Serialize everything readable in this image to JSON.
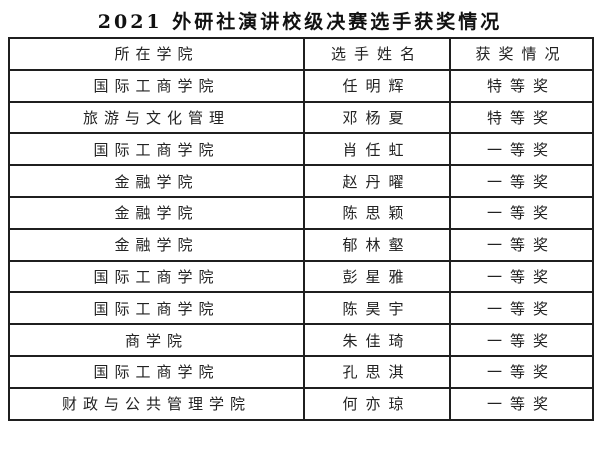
{
  "title": "2021 外研社演讲校级决赛选手获奖情况",
  "table": {
    "headers": {
      "college": "所在学院",
      "name": "选手姓名",
      "award": "获奖情况"
    },
    "rows": [
      {
        "college": "国际工商学院",
        "name": "任明辉",
        "award": "特等奖"
      },
      {
        "college": "旅游与文化管理",
        "name": "邓杨夏",
        "award": "特等奖"
      },
      {
        "college": "国际工商学院",
        "name": "肖任虹",
        "award": "一等奖"
      },
      {
        "college": "金融学院",
        "name": "赵丹曜",
        "award": "一等奖"
      },
      {
        "college": "金融学院",
        "name": "陈思颖",
        "award": "一等奖"
      },
      {
        "college": "金融学院",
        "name": "郁林壑",
        "award": "一等奖"
      },
      {
        "college": "国际工商学院",
        "name": "彭星雅",
        "award": "一等奖"
      },
      {
        "college": "国际工商学院",
        "name": "陈昊宇",
        "award": "一等奖"
      },
      {
        "college": "商学院",
        "name": "朱佳琦",
        "award": "一等奖"
      },
      {
        "college": "国际工商学院",
        "name": "孔思淇",
        "award": "一等奖"
      },
      {
        "college": "财政与公共管理学院",
        "name": "何亦琼",
        "award": "一等奖"
      }
    ]
  }
}
